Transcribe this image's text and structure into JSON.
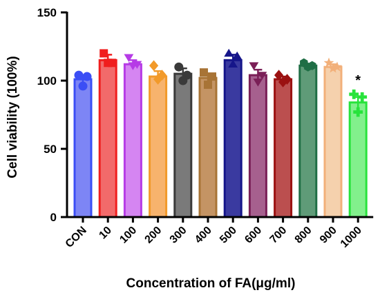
{
  "chart_data": {
    "type": "bar",
    "title": "",
    "xlabel": "Concentration of FA(μg/ml)",
    "ylabel": "Cell viability (100%)",
    "ylim": [
      0,
      150
    ],
    "yticks": [
      0,
      50,
      100,
      150
    ],
    "grid": false,
    "legend": "none",
    "categories": [
      "CON",
      "10",
      "100",
      "200",
      "300",
      "400",
      "500",
      "600",
      "700",
      "800",
      "900",
      "1000"
    ],
    "values": [
      101,
      115,
      112,
      103,
      105,
      102,
      115,
      104,
      101,
      111,
      110,
      84
    ],
    "errors": [
      3,
      4,
      3,
      4,
      4,
      3,
      4,
      4,
      2,
      1,
      2,
      4
    ],
    "points": [
      [
        104,
        103,
        96
      ],
      [
        120,
        113,
        113
      ],
      [
        117,
        112,
        111
      ],
      [
        111,
        104,
        101
      ],
      [
        110,
        104,
        100
      ],
      [
        106,
        103,
        97
      ],
      [
        120,
        118,
        112
      ],
      [
        111,
        104,
        99
      ],
      [
        104,
        101,
        99
      ],
      [
        113,
        111,
        110
      ],
      [
        113,
        110,
        109
      ],
      [
        90,
        88,
        77
      ]
    ],
    "markers": [
      "circle",
      "square",
      "triangle-down",
      "diamond",
      "circle",
      "square",
      "triangle-up",
      "triangle-down",
      "diamond",
      "hexagon",
      "star",
      "plus"
    ],
    "colors": [
      "#3b4ef5",
      "#f01e1e",
      "#b63be6",
      "#f29a2a",
      "#3a3a3a",
      "#a87436",
      "#16168a",
      "#7a1f57",
      "#9b1111",
      "#1f6e45",
      "#f2b07a",
      "#28e33c"
    ],
    "fill_colors": [
      "#7d85f5",
      "#f26a6a",
      "#d585f2",
      "#f7b36d",
      "#7a7a7a",
      "#c49464",
      "#3a3aa0",
      "#a6608e",
      "#bb4f4f",
      "#5f9b78",
      "#f5d1ad",
      "#82f08c"
    ],
    "annotations": [
      {
        "category": "1000",
        "text": "*"
      }
    ]
  }
}
